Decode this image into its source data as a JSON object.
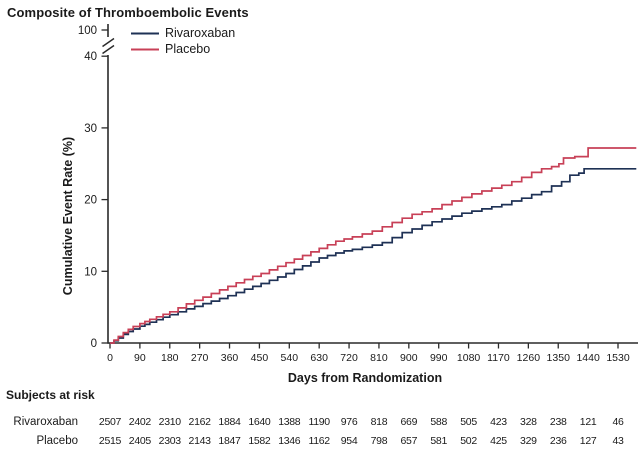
{
  "title": "Composite of Thromboembolic Events",
  "chart_data": {
    "type": "line",
    "subtype": "kaplan-meier-step",
    "title": "Composite of Thromboembolic Events",
    "xlabel": "Days from Randomization",
    "ylabel": "Cumulative Event Rate (%)",
    "xlim": [
      0,
      1530
    ],
    "ylim": [
      0,
      40
    ],
    "grid": false,
    "legend_position": "top-left-inside",
    "axis_color": "#2a2a2a",
    "x_ticks": [
      0,
      90,
      180,
      270,
      360,
      450,
      540,
      630,
      720,
      810,
      900,
      990,
      1080,
      1170,
      1260,
      1350,
      1440,
      1530
    ],
    "y_ticks": [
      0,
      10,
      20,
      30,
      40
    ],
    "y_break_top_tick": 100,
    "series": [
      {
        "name": "Rivaroxaban",
        "color": "#1e3155",
        "points": [
          [
            0,
            0
          ],
          [
            12,
            0.3
          ],
          [
            25,
            0.7
          ],
          [
            40,
            1.2
          ],
          [
            55,
            1.6
          ],
          [
            70,
            1.95
          ],
          [
            90,
            2.35
          ],
          [
            105,
            2.6
          ],
          [
            120,
            2.9
          ],
          [
            140,
            3.25
          ],
          [
            160,
            3.6
          ],
          [
            180,
            3.95
          ],
          [
            205,
            4.35
          ],
          [
            230,
            4.75
          ],
          [
            255,
            5.1
          ],
          [
            280,
            5.5
          ],
          [
            305,
            5.85
          ],
          [
            330,
            6.2
          ],
          [
            355,
            6.6
          ],
          [
            380,
            7.05
          ],
          [
            405,
            7.5
          ],
          [
            430,
            7.9
          ],
          [
            455,
            8.3
          ],
          [
            480,
            8.75
          ],
          [
            505,
            9.2
          ],
          [
            530,
            9.7
          ],
          [
            555,
            10.25
          ],
          [
            580,
            10.75
          ],
          [
            605,
            11.3
          ],
          [
            630,
            11.85
          ],
          [
            655,
            12.2
          ],
          [
            680,
            12.55
          ],
          [
            705,
            12.85
          ],
          [
            730,
            13.05
          ],
          [
            760,
            13.35
          ],
          [
            790,
            13.65
          ],
          [
            820,
            14.0
          ],
          [
            850,
            14.7
          ],
          [
            880,
            15.4
          ],
          [
            910,
            15.9
          ],
          [
            940,
            16.4
          ],
          [
            970,
            16.9
          ],
          [
            1000,
            17.3
          ],
          [
            1030,
            17.7
          ],
          [
            1060,
            18.1
          ],
          [
            1090,
            18.4
          ],
          [
            1120,
            18.7
          ],
          [
            1150,
            19.0
          ],
          [
            1180,
            19.3
          ],
          [
            1210,
            19.8
          ],
          [
            1240,
            20.2
          ],
          [
            1270,
            20.7
          ],
          [
            1300,
            21.1
          ],
          [
            1330,
            21.9
          ],
          [
            1360,
            22.5
          ],
          [
            1385,
            23.4
          ],
          [
            1412,
            23.7
          ],
          [
            1428,
            24.3
          ],
          [
            1585,
            24.3
          ]
        ]
      },
      {
        "name": "Placebo",
        "color": "#c84057",
        "points": [
          [
            0,
            0
          ],
          [
            12,
            0.4
          ],
          [
            25,
            0.9
          ],
          [
            40,
            1.45
          ],
          [
            55,
            1.9
          ],
          [
            70,
            2.3
          ],
          [
            90,
            2.7
          ],
          [
            105,
            3.0
          ],
          [
            120,
            3.3
          ],
          [
            140,
            3.65
          ],
          [
            160,
            4.0
          ],
          [
            180,
            4.35
          ],
          [
            205,
            4.9
          ],
          [
            230,
            5.45
          ],
          [
            255,
            5.95
          ],
          [
            280,
            6.4
          ],
          [
            305,
            6.9
          ],
          [
            330,
            7.4
          ],
          [
            355,
            7.9
          ],
          [
            380,
            8.4
          ],
          [
            405,
            8.85
          ],
          [
            430,
            9.3
          ],
          [
            455,
            9.7
          ],
          [
            480,
            10.2
          ],
          [
            505,
            10.7
          ],
          [
            530,
            11.2
          ],
          [
            555,
            11.7
          ],
          [
            580,
            12.2
          ],
          [
            605,
            12.7
          ],
          [
            630,
            13.2
          ],
          [
            655,
            13.7
          ],
          [
            680,
            14.2
          ],
          [
            705,
            14.5
          ],
          [
            730,
            14.8
          ],
          [
            760,
            15.2
          ],
          [
            790,
            15.6
          ],
          [
            820,
            16.2
          ],
          [
            850,
            16.8
          ],
          [
            880,
            17.4
          ],
          [
            910,
            17.95
          ],
          [
            940,
            18.3
          ],
          [
            970,
            18.7
          ],
          [
            1000,
            19.3
          ],
          [
            1030,
            19.8
          ],
          [
            1060,
            20.3
          ],
          [
            1090,
            20.8
          ],
          [
            1120,
            21.2
          ],
          [
            1150,
            21.6
          ],
          [
            1180,
            22.0
          ],
          [
            1210,
            22.5
          ],
          [
            1240,
            23.1
          ],
          [
            1270,
            23.8
          ],
          [
            1300,
            24.3
          ],
          [
            1330,
            24.6
          ],
          [
            1352,
            25.0
          ],
          [
            1366,
            25.8
          ],
          [
            1400,
            26.0
          ],
          [
            1440,
            27.2
          ],
          [
            1585,
            27.2
          ]
        ]
      }
    ]
  },
  "risk_table": {
    "heading": "Subjects at risk",
    "rows": [
      {
        "label": "Rivaroxaban",
        "values": [
          2507,
          2402,
          2310,
          2162,
          1884,
          1640,
          1388,
          1190,
          976,
          818,
          669,
          588,
          505,
          423,
          328,
          238,
          121,
          46
        ]
      },
      {
        "label": "Placebo",
        "values": [
          2515,
          2405,
          2303,
          2143,
          1847,
          1582,
          1346,
          1162,
          954,
          798,
          657,
          581,
          502,
          425,
          329,
          236,
          127,
          43
        ]
      }
    ]
  }
}
